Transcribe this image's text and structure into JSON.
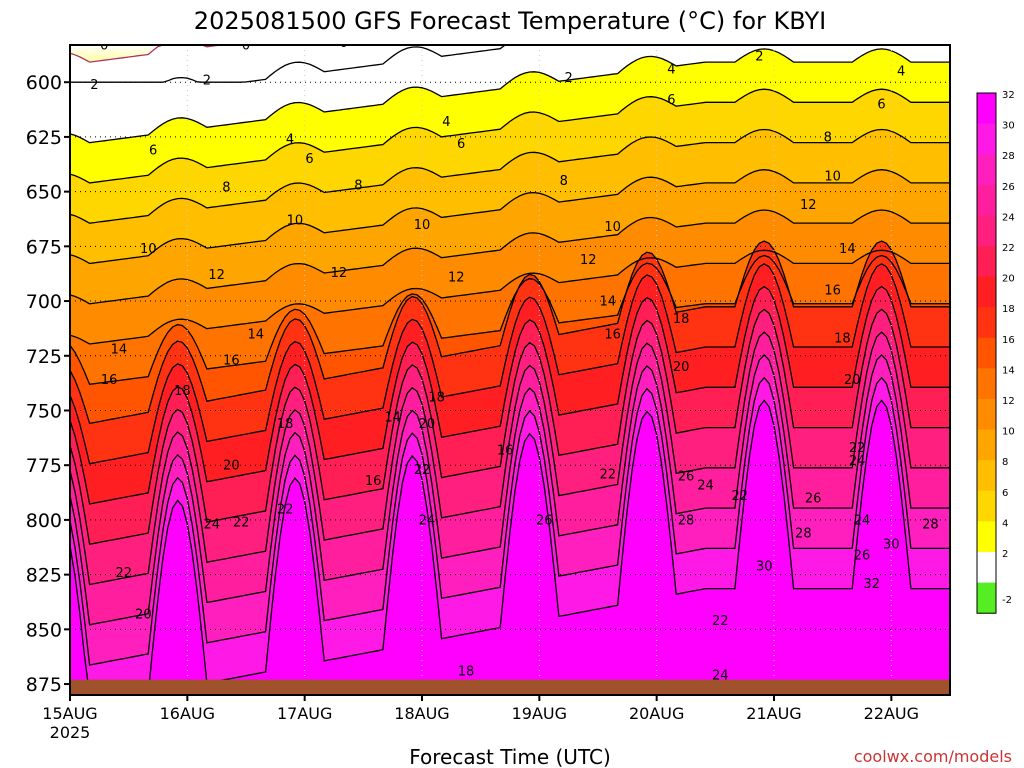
{
  "chart_data": {
    "type": "heatmap",
    "title": "2025081500 GFS Forecast Temperature (°C) for KBYI",
    "xlabel": "Forecast Time (UTC)",
    "ylabel": "",
    "credit": "coolwx.com/models",
    "y_range": [
      583,
      880
    ],
    "y_ticks": [
      600,
      625,
      650,
      675,
      700,
      725,
      750,
      775,
      800,
      825,
      850,
      875
    ],
    "x_range_hours": [
      0,
      180
    ],
    "x_ticks": [
      {
        "label": "15AUG",
        "sub": "2025",
        "hour": 0
      },
      {
        "label": "16AUG",
        "sub": "",
        "hour": 24
      },
      {
        "label": "17AUG",
        "sub": "",
        "hour": 48
      },
      {
        "label": "18AUG",
        "sub": "",
        "hour": 72
      },
      {
        "label": "19AUG",
        "sub": "",
        "hour": 96
      },
      {
        "label": "20AUG",
        "sub": "",
        "hour": 120
      },
      {
        "label": "21AUG",
        "sub": "",
        "hour": 144
      },
      {
        "label": "22AUG",
        "sub": "",
        "hour": 168
      }
    ],
    "colorbar": {
      "labels": [
        "32",
        "30",
        "28",
        "26",
        "24",
        "22",
        "20",
        "18",
        "16",
        "14",
        "12",
        "10",
        "8",
        "6",
        "4",
        "2",
        "-2"
      ],
      "colors": [
        "#ff00ff",
        "#ff19e6",
        "#ff1fbf",
        "#ff1f9e",
        "#ff1f7e",
        "#ff1f55",
        "#ff1f22",
        "#ff3311",
        "#ff5500",
        "#ff7300",
        "#ff8c00",
        "#ffa500",
        "#ffbf00",
        "#ffd700",
        "#ffff00",
        "#ffffff",
        "#55ee22"
      ]
    },
    "surface_pressure": 873,
    "surface_color": "#a0522d",
    "contour_levels": [
      0,
      2,
      4,
      6,
      8,
      10,
      12,
      14,
      16,
      18,
      20,
      22,
      24,
      26,
      28,
      30,
      32
    ],
    "contour_label_positions": [
      {
        "t": 0,
        "x": 7,
        "p": 585
      },
      {
        "t": 0,
        "x": 36,
        "p": 585
      },
      {
        "t": 0,
        "x": 56,
        "p": 584
      },
      {
        "t": 2,
        "x": 5,
        "p": 603
      },
      {
        "t": 2,
        "x": 28,
        "p": 601
      },
      {
        "t": 2,
        "x": 102,
        "p": 600
      },
      {
        "t": 2,
        "x": 141,
        "p": 590
      },
      {
        "t": 4,
        "x": 45,
        "p": 628
      },
      {
        "t": 4,
        "x": 77,
        "p": 620
      },
      {
        "t": 4,
        "x": 123,
        "p": 596
      },
      {
        "t": 4,
        "x": 170,
        "p": 597
      },
      {
        "t": 6,
        "x": 17,
        "p": 633
      },
      {
        "t": 6,
        "x": 49,
        "p": 637
      },
      {
        "t": 6,
        "x": 80,
        "p": 630
      },
      {
        "t": 6,
        "x": 123,
        "p": 610
      },
      {
        "t": 6,
        "x": 166,
        "p": 612
      },
      {
        "t": 8,
        "x": 32,
        "p": 650
      },
      {
        "t": 8,
        "x": 59,
        "p": 649
      },
      {
        "t": 8,
        "x": 101,
        "p": 647
      },
      {
        "t": 8,
        "x": 155,
        "p": 627
      },
      {
        "t": 10,
        "x": 16,
        "p": 678
      },
      {
        "t": 10,
        "x": 46,
        "p": 665
      },
      {
        "t": 10,
        "x": 72,
        "p": 667
      },
      {
        "t": 10,
        "x": 111,
        "p": 668
      },
      {
        "t": 10,
        "x": 156,
        "p": 645
      },
      {
        "t": 12,
        "x": 30,
        "p": 690
      },
      {
        "t": 12,
        "x": 55,
        "p": 689
      },
      {
        "t": 12,
        "x": 79,
        "p": 691
      },
      {
        "t": 12,
        "x": 106,
        "p": 683
      },
      {
        "t": 12,
        "x": 151,
        "p": 658
      },
      {
        "t": 14,
        "x": 10,
        "p": 724
      },
      {
        "t": 14,
        "x": 38,
        "p": 717
      },
      {
        "t": 14,
        "x": 66,
        "p": 755
      },
      {
        "t": 14,
        "x": 110,
        "p": 702
      },
      {
        "t": 14,
        "x": 159,
        "p": 678
      },
      {
        "t": 16,
        "x": 8,
        "p": 738
      },
      {
        "t": 16,
        "x": 33,
        "p": 729
      },
      {
        "t": 16,
        "x": 62,
        "p": 784
      },
      {
        "t": 16,
        "x": 89,
        "p": 770
      },
      {
        "t": 16,
        "x": 111,
        "p": 717
      },
      {
        "t": 16,
        "x": 156,
        "p": 697
      },
      {
        "t": 18,
        "x": 23,
        "p": 743
      },
      {
        "t": 18,
        "x": 44,
        "p": 758
      },
      {
        "t": 18,
        "x": 75,
        "p": 746
      },
      {
        "t": 18,
        "x": 81,
        "p": 871
      },
      {
        "t": 18,
        "x": 125,
        "p": 710
      },
      {
        "t": 18,
        "x": 158,
        "p": 719
      },
      {
        "t": 20,
        "x": 33,
        "p": 777
      },
      {
        "t": 20,
        "x": 73,
        "p": 758
      },
      {
        "t": 20,
        "x": 125,
        "p": 732
      },
      {
        "t": 20,
        "x": 160,
        "p": 738
      },
      {
        "t": 20,
        "x": 15,
        "p": 845
      },
      {
        "t": 22,
        "x": 11,
        "p": 826
      },
      {
        "t": 22,
        "x": 35,
        "p": 803
      },
      {
        "t": 22,
        "x": 44,
        "p": 797
      },
      {
        "t": 22,
        "x": 72,
        "p": 779
      },
      {
        "t": 22,
        "x": 110,
        "p": 781
      },
      {
        "t": 22,
        "x": 137,
        "p": 791
      },
      {
        "t": 22,
        "x": 133,
        "p": 848
      },
      {
        "t": 22,
        "x": 161,
        "p": 769
      },
      {
        "t": 24,
        "x": 29,
        "p": 804
      },
      {
        "t": 24,
        "x": 73,
        "p": 802
      },
      {
        "t": 24,
        "x": 130,
        "p": 786
      },
      {
        "t": 24,
        "x": 161,
        "p": 775
      },
      {
        "t": 24,
        "x": 162,
        "p": 802
      },
      {
        "t": 24,
        "x": 133,
        "p": 873
      },
      {
        "t": 26,
        "x": 97,
        "p": 802
      },
      {
        "t": 26,
        "x": 126,
        "p": 782
      },
      {
        "t": 26,
        "x": 152,
        "p": 792
      },
      {
        "t": 26,
        "x": 162,
        "p": 818
      },
      {
        "t": 28,
        "x": 126,
        "p": 802
      },
      {
        "t": 28,
        "x": 150,
        "p": 808
      },
      {
        "t": 28,
        "x": 176,
        "p": 804
      },
      {
        "t": 30,
        "x": 142,
        "p": 823
      },
      {
        "t": 30,
        "x": 168,
        "p": 813
      },
      {
        "t": 32,
        "x": 164,
        "p": 831
      }
    ]
  }
}
